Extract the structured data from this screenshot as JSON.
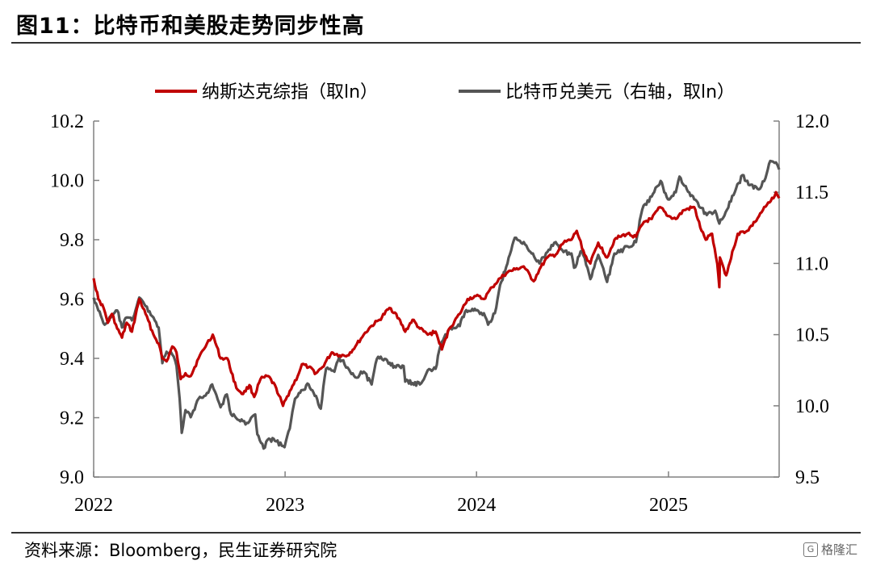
{
  "figure": {
    "title": "图11：比特币和美股走势同步性高",
    "source": "资料来源：Bloomberg，民生证券研究院",
    "watermark": "格隆汇"
  },
  "colors": {
    "nasdaq": "#c00000",
    "btc": "#555555",
    "axis": "#808080"
  },
  "chart_data": {
    "type": "line",
    "title": "",
    "x_ticks": [
      "2022",
      "2023",
      "2024",
      "2025"
    ],
    "x_range": [
      "2022-01-01",
      "2025-07-31"
    ],
    "y_left": {
      "min": 9.0,
      "max": 10.2,
      "ticks": [
        "9.0",
        "9.2",
        "9.4",
        "9.6",
        "9.8",
        "10.0",
        "10.2"
      ]
    },
    "y_right": {
      "min": 9.5,
      "max": 12.0,
      "ticks": [
        "9.5",
        "10.0",
        "10.5",
        "11.0",
        "11.5",
        "12.0"
      ]
    },
    "grid": false,
    "legend_position": "top",
    "series": [
      {
        "name": "纳斯达克综指（取ln）",
        "axis": "left",
        "points": [
          [
            "2022-01-01",
            9.67
          ],
          [
            "2022-01-10",
            9.6
          ],
          [
            "2022-01-20",
            9.57
          ],
          [
            "2022-01-28",
            9.52
          ],
          [
            "2022-02-05",
            9.55
          ],
          [
            "2022-02-15",
            9.5
          ],
          [
            "2022-02-24",
            9.47
          ],
          [
            "2022-03-05",
            9.52
          ],
          [
            "2022-03-15",
            9.49
          ],
          [
            "2022-03-29",
            9.6
          ],
          [
            "2022-04-10",
            9.55
          ],
          [
            "2022-04-25",
            9.48
          ],
          [
            "2022-05-05",
            9.45
          ],
          [
            "2022-05-12",
            9.4
          ],
          [
            "2022-05-20",
            9.39
          ],
          [
            "2022-05-31",
            9.44
          ],
          [
            "2022-06-08",
            9.42
          ],
          [
            "2022-06-16",
            9.33
          ],
          [
            "2022-06-25",
            9.35
          ],
          [
            "2022-07-05",
            9.34
          ],
          [
            "2022-07-20",
            9.4
          ],
          [
            "2022-08-05",
            9.45
          ],
          [
            "2022-08-16",
            9.48
          ],
          [
            "2022-08-31",
            9.4
          ],
          [
            "2022-09-13",
            9.4
          ],
          [
            "2022-09-30",
            9.3
          ],
          [
            "2022-10-13",
            9.28
          ],
          [
            "2022-10-25",
            9.31
          ],
          [
            "2022-11-03",
            9.27
          ],
          [
            "2022-11-15",
            9.33
          ],
          [
            "2022-11-30",
            9.34
          ],
          [
            "2022-12-15",
            9.3
          ],
          [
            "2022-12-28",
            9.24
          ],
          [
            "2023-01-10",
            9.29
          ],
          [
            "2023-01-25",
            9.34
          ],
          [
            "2023-02-02",
            9.38
          ],
          [
            "2023-02-15",
            9.37
          ],
          [
            "2023-03-01",
            9.35
          ],
          [
            "2023-03-13",
            9.37
          ],
          [
            "2023-03-31",
            9.42
          ],
          [
            "2023-04-15",
            9.41
          ],
          [
            "2023-04-30",
            9.41
          ],
          [
            "2023-05-15",
            9.44
          ],
          [
            "2023-05-31",
            9.48
          ],
          [
            "2023-06-15",
            9.51
          ],
          [
            "2023-06-30",
            9.53
          ],
          [
            "2023-07-19",
            9.57
          ],
          [
            "2023-08-01",
            9.55
          ],
          [
            "2023-08-18",
            9.49
          ],
          [
            "2023-09-01",
            9.53
          ],
          [
            "2023-09-15",
            9.5
          ],
          [
            "2023-09-30",
            9.48
          ],
          [
            "2023-10-15",
            9.49
          ],
          [
            "2023-10-27",
            9.43
          ],
          [
            "2023-11-10",
            9.5
          ],
          [
            "2023-11-30",
            9.55
          ],
          [
            "2023-12-15",
            9.6
          ],
          [
            "2023-12-31",
            9.61
          ],
          [
            "2024-01-15",
            9.6
          ],
          [
            "2024-01-31",
            9.64
          ],
          [
            "2024-02-15",
            9.67
          ],
          [
            "2024-02-29",
            9.69
          ],
          [
            "2024-03-15",
            9.7
          ],
          [
            "2024-03-31",
            9.71
          ],
          [
            "2024-04-19",
            9.66
          ],
          [
            "2024-04-30",
            9.7
          ],
          [
            "2024-05-15",
            9.74
          ],
          [
            "2024-05-31",
            9.75
          ],
          [
            "2024-06-15",
            9.79
          ],
          [
            "2024-06-30",
            9.8
          ],
          [
            "2024-07-10",
            9.83
          ],
          [
            "2024-07-25",
            9.75
          ],
          [
            "2024-08-05",
            9.72
          ],
          [
            "2024-08-20",
            9.79
          ],
          [
            "2024-09-06",
            9.74
          ],
          [
            "2024-09-20",
            9.8
          ],
          [
            "2024-09-30",
            9.81
          ],
          [
            "2024-10-15",
            9.82
          ],
          [
            "2024-10-31",
            9.81
          ],
          [
            "2024-11-15",
            9.86
          ],
          [
            "2024-11-30",
            9.87
          ],
          [
            "2024-12-16",
            9.91
          ],
          [
            "2024-12-31",
            9.88
          ],
          [
            "2025-01-15",
            9.87
          ],
          [
            "2025-01-31",
            9.9
          ],
          [
            "2025-02-19",
            9.91
          ],
          [
            "2025-03-05",
            9.83
          ],
          [
            "2025-03-13",
            9.8
          ],
          [
            "2025-03-25",
            9.82
          ],
          [
            "2025-04-04",
            9.72
          ],
          [
            "2025-04-08",
            9.64
          ],
          [
            "2025-04-09",
            9.74
          ],
          [
            "2025-04-21",
            9.68
          ],
          [
            "2025-05-05",
            9.77
          ],
          [
            "2025-05-13",
            9.82
          ],
          [
            "2025-05-31",
            9.83
          ],
          [
            "2025-06-15",
            9.86
          ],
          [
            "2025-06-30",
            9.9
          ],
          [
            "2025-07-15",
            9.93
          ],
          [
            "2025-07-25",
            9.96
          ],
          [
            "2025-07-31",
            9.94
          ]
        ]
      },
      {
        "name": "比特币兑美元（右轴，取ln）",
        "axis": "right",
        "points": [
          [
            "2022-01-01",
            10.76
          ],
          [
            "2022-01-10",
            10.67
          ],
          [
            "2022-01-22",
            10.57
          ],
          [
            "2022-02-05",
            10.63
          ],
          [
            "2022-02-15",
            10.67
          ],
          [
            "2022-02-24",
            10.55
          ],
          [
            "2022-03-05",
            10.62
          ],
          [
            "2022-03-15",
            10.6
          ],
          [
            "2022-03-29",
            10.76
          ],
          [
            "2022-04-10",
            10.7
          ],
          [
            "2022-04-25",
            10.62
          ],
          [
            "2022-05-05",
            10.55
          ],
          [
            "2022-05-12",
            10.3
          ],
          [
            "2022-05-20",
            10.38
          ],
          [
            "2022-05-31",
            10.36
          ],
          [
            "2022-06-08",
            10.28
          ],
          [
            "2022-06-14",
            10.05
          ],
          [
            "2022-06-18",
            9.81
          ],
          [
            "2022-06-25",
            9.97
          ],
          [
            "2022-07-05",
            9.92
          ],
          [
            "2022-07-20",
            10.05
          ],
          [
            "2022-08-05",
            10.09
          ],
          [
            "2022-08-15",
            10.15
          ],
          [
            "2022-08-31",
            9.99
          ],
          [
            "2022-09-12",
            10.08
          ],
          [
            "2022-09-20",
            9.94
          ],
          [
            "2022-10-05",
            9.9
          ],
          [
            "2022-10-20",
            9.88
          ],
          [
            "2022-11-05",
            9.94
          ],
          [
            "2022-11-09",
            9.8
          ],
          [
            "2022-11-21",
            9.7
          ],
          [
            "2022-12-01",
            9.77
          ],
          [
            "2022-12-15",
            9.75
          ],
          [
            "2022-12-31",
            9.71
          ],
          [
            "2023-01-10",
            9.84
          ],
          [
            "2023-01-20",
            10.05
          ],
          [
            "2023-02-01",
            10.11
          ],
          [
            "2023-02-15",
            10.15
          ],
          [
            "2023-03-01",
            10.07
          ],
          [
            "2023-03-10",
            9.98
          ],
          [
            "2023-03-20",
            10.26
          ],
          [
            "2023-04-05",
            10.24
          ],
          [
            "2023-04-14",
            10.34
          ],
          [
            "2023-04-30",
            10.27
          ],
          [
            "2023-05-15",
            10.2
          ],
          [
            "2023-05-31",
            10.24
          ],
          [
            "2023-06-15",
            10.15
          ],
          [
            "2023-06-25",
            10.33
          ],
          [
            "2023-07-10",
            10.33
          ],
          [
            "2023-07-31",
            10.27
          ],
          [
            "2023-08-15",
            10.28
          ],
          [
            "2023-08-18",
            10.17
          ],
          [
            "2023-09-01",
            10.16
          ],
          [
            "2023-09-15",
            10.15
          ],
          [
            "2023-09-30",
            10.25
          ],
          [
            "2023-10-15",
            10.26
          ],
          [
            "2023-10-24",
            10.42
          ],
          [
            "2023-11-10",
            10.54
          ],
          [
            "2023-11-30",
            10.56
          ],
          [
            "2023-12-10",
            10.66
          ],
          [
            "2023-12-31",
            10.67
          ],
          [
            "2024-01-15",
            10.65
          ],
          [
            "2024-01-23",
            10.57
          ],
          [
            "2024-02-05",
            10.65
          ],
          [
            "2024-02-15",
            10.85
          ],
          [
            "2024-02-29",
            11.0
          ],
          [
            "2024-03-14",
            11.18
          ],
          [
            "2024-03-31",
            11.15
          ],
          [
            "2024-04-15",
            11.07
          ],
          [
            "2024-04-30",
            11.0
          ],
          [
            "2024-05-15",
            11.08
          ],
          [
            "2024-05-31",
            11.15
          ],
          [
            "2024-06-15",
            11.08
          ],
          [
            "2024-06-30",
            11.07
          ],
          [
            "2024-07-05",
            10.97
          ],
          [
            "2024-07-20",
            11.09
          ],
          [
            "2024-08-05",
            10.89
          ],
          [
            "2024-08-20",
            11.06
          ],
          [
            "2024-09-06",
            10.87
          ],
          [
            "2024-09-20",
            11.07
          ],
          [
            "2024-09-30",
            11.08
          ],
          [
            "2024-10-15",
            11.12
          ],
          [
            "2024-10-31",
            11.15
          ],
          [
            "2024-11-12",
            11.38
          ],
          [
            "2024-11-30",
            11.47
          ],
          [
            "2024-12-17",
            11.58
          ],
          [
            "2024-12-31",
            11.45
          ],
          [
            "2025-01-15",
            11.5
          ],
          [
            "2025-01-22",
            11.61
          ],
          [
            "2025-02-05",
            11.52
          ],
          [
            "2025-02-19",
            11.45
          ],
          [
            "2025-03-05",
            11.39
          ],
          [
            "2025-03-15",
            11.34
          ],
          [
            "2025-03-31",
            11.37
          ],
          [
            "2025-04-08",
            11.28
          ],
          [
            "2025-04-20",
            11.36
          ],
          [
            "2025-05-05",
            11.48
          ],
          [
            "2025-05-22",
            11.62
          ],
          [
            "2025-06-05",
            11.55
          ],
          [
            "2025-06-22",
            11.52
          ],
          [
            "2025-07-05",
            11.6
          ],
          [
            "2025-07-14",
            11.72
          ],
          [
            "2025-07-25",
            11.71
          ],
          [
            "2025-07-31",
            11.66
          ]
        ]
      }
    ]
  }
}
